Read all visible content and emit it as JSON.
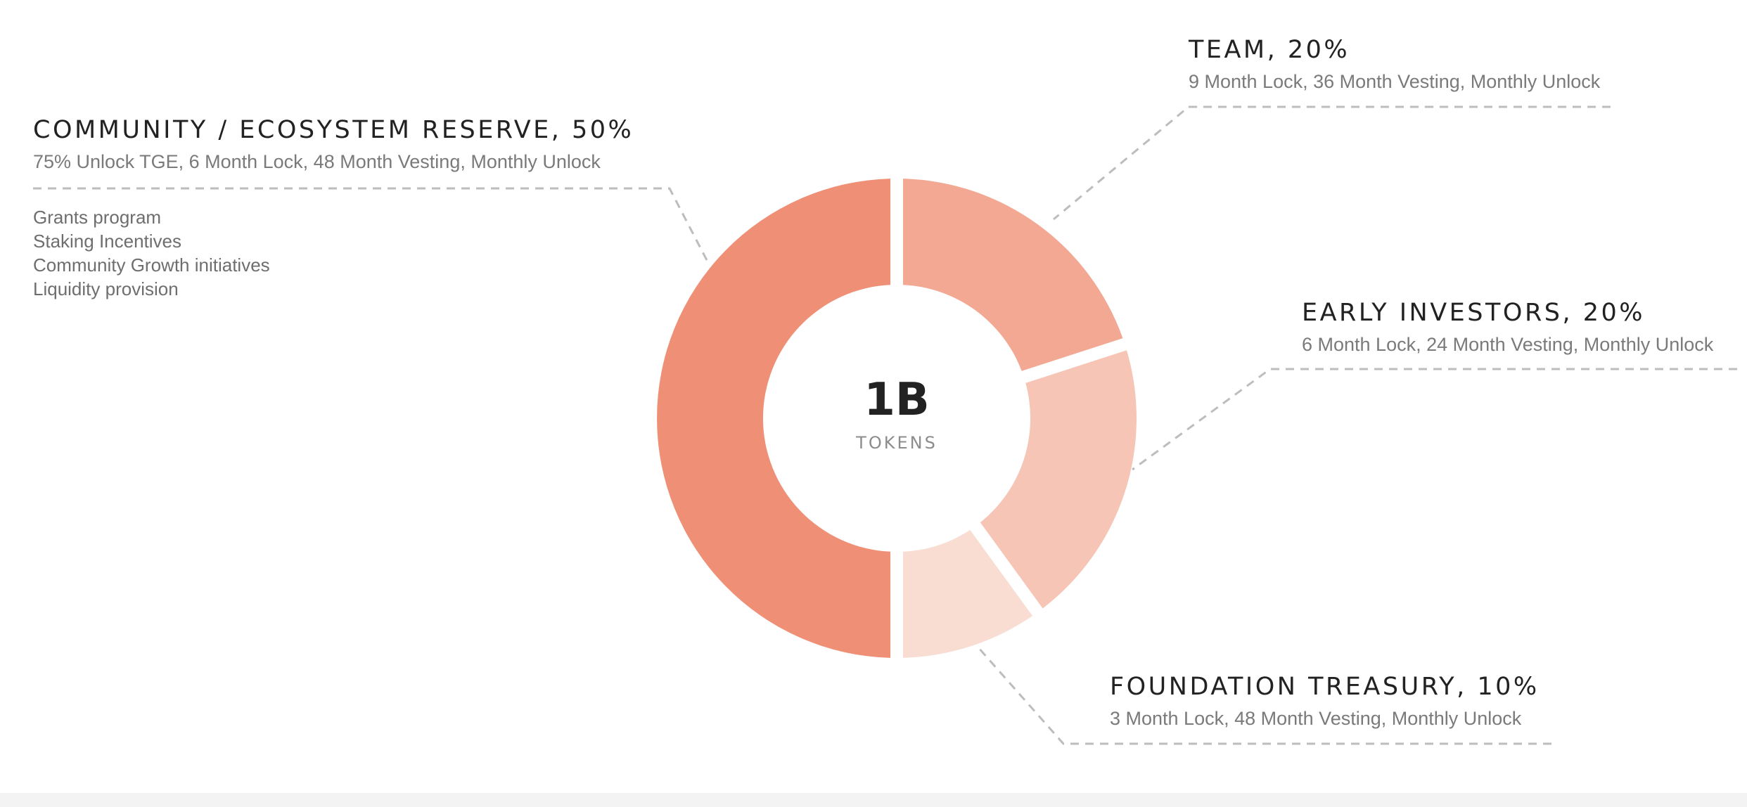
{
  "chart_data": {
    "type": "pie",
    "variant": "donut",
    "center_value": "1B",
    "center_label": "TOKENS",
    "slices": [
      {
        "name": "TEAM",
        "value": 20,
        "display": "TEAM, 20%",
        "color": "#f2a892",
        "description": "9 Month Lock, 36 Month Vesting, Monthly Unlock"
      },
      {
        "name": "EARLY INVESTORS",
        "value": 20,
        "display": "EARLY INVESTORS, 20%",
        "color": "#f6c5b6",
        "description": "6 Month Lock, 24 Month Vesting, Monthly Unlock"
      },
      {
        "name": "FOUNDATION TREASURY",
        "value": 10,
        "display": "FOUNDATION TREASURY, 10%",
        "color": "#f9ddd3",
        "description": "3 Month Lock, 48 Month Vesting, Monthly Unlock"
      },
      {
        "name": "COMMUNITY / ECOSYSTEM RESERVE",
        "value": 50,
        "display": "COMMUNITY / ECOSYSTEM RESERVE, 50%",
        "color": "#ef9076",
        "description": "75% Unlock TGE, 6 Month Lock, 48 Month Vesting, Monthly Unlock",
        "items": [
          "Grants program",
          "Staking Incentives",
          "Community Growth initiatives",
          "Liquidity provision"
        ]
      }
    ]
  }
}
